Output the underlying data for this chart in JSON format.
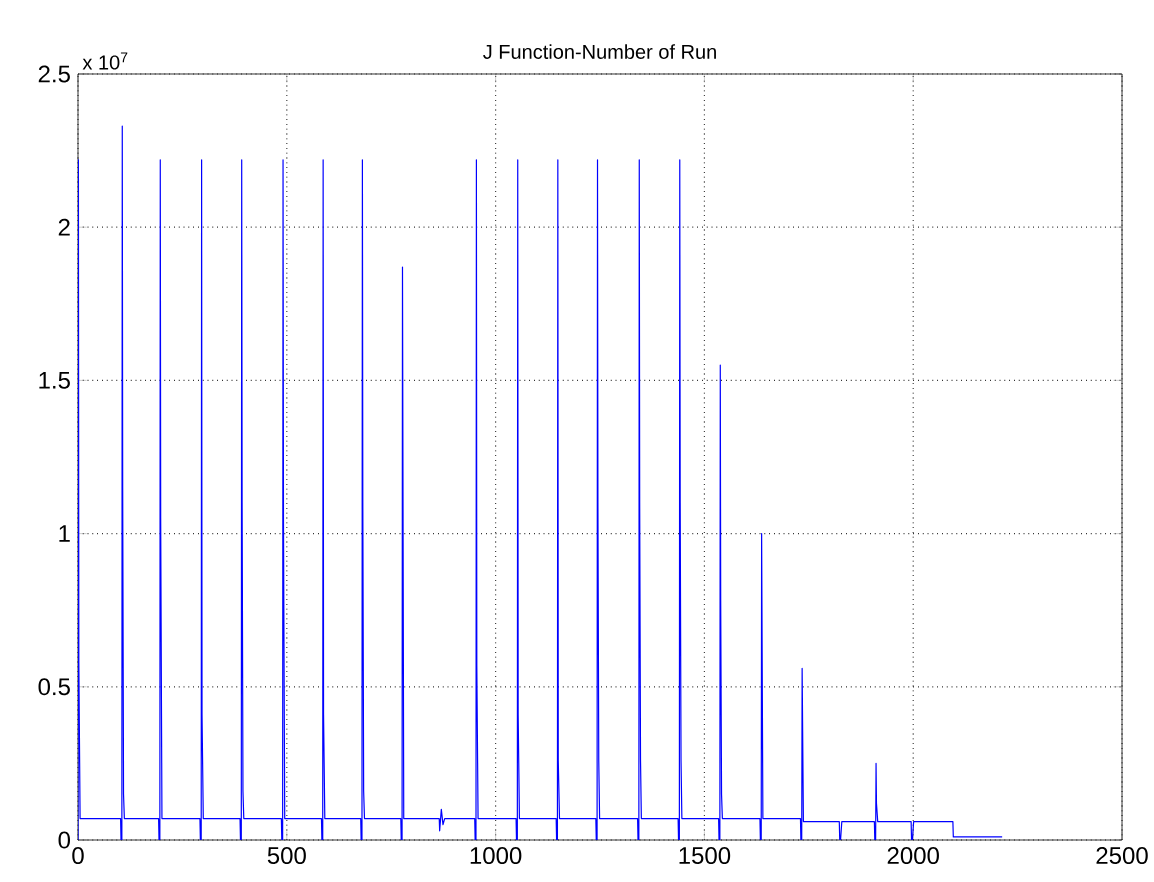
{
  "chart_data": {
    "type": "line",
    "title": "J Function-Number of Run",
    "annotations": [
      "x 10$^{7}$"
    ],
    "xlim": [
      0,
      2500
    ],
    "xticks": [
      0,
      500,
      1000,
      1500,
      2000,
      2500
    ],
    "ylim": [
      0,
      2.5
    ],
    "yticks": [
      0,
      0.5,
      1,
      1.5,
      2,
      2.5
    ],
    "grid": true,
    "marker": "none",
    "line_style": "solid",
    "series": [
      {
        "color": "#0000ff",
        "x": [
          0,
          1,
          2,
          5,
          102,
          103,
          105,
          106,
          107,
          109,
          111,
          193,
          194,
          196,
          197,
          198,
          201,
          292,
          293,
          295,
          296,
          297,
          300,
          388,
          389,
          391,
          392,
          393,
          395,
          397,
          487,
          488,
          490,
          491,
          492,
          495,
          583,
          584,
          586,
          587,
          588,
          591,
          677,
          678,
          680,
          681,
          682,
          684,
          686,
          773,
          774,
          776,
          777,
          780,
          865,
          866,
          870,
          874,
          878,
          950,
          951,
          953,
          954,
          955,
          958,
          1049,
          1050,
          1052,
          1053,
          1054,
          1057,
          1145,
          1146,
          1148,
          1149,
          1150,
          1153,
          1240,
          1241,
          1243,
          1244,
          1245,
          1247,
          1249,
          1340,
          1341,
          1343,
          1344,
          1345,
          1347,
          1349,
          1437,
          1438,
          1440,
          1441,
          1442,
          1444,
          1446,
          1534,
          1535,
          1537,
          1538,
          1539,
          1541,
          1543,
          1633,
          1634,
          1636,
          1637,
          1640,
          1730,
          1731,
          1733,
          1734,
          1737,
          1823,
          1824,
          1826,
          1829,
          1907,
          1908,
          1910,
          1911,
          1912,
          1915,
          1995,
          1996,
          1998,
          2001,
          2095,
          2096,
          2213
        ],
        "values": [
          0,
          2.22,
          0.58,
          0.07,
          0.07,
          0,
          0,
          2.33,
          1.15,
          0.15,
          0.07,
          0.07,
          0,
          0,
          2.22,
          1.05,
          0.07,
          0.07,
          0,
          0,
          2.22,
          0.41,
          0.07,
          0.07,
          0,
          0,
          2.22,
          1.1,
          0.16,
          0.07,
          0.07,
          0,
          0,
          2.22,
          1.05,
          0.07,
          0.07,
          0,
          0,
          2.22,
          0.41,
          0.07,
          0.07,
          0,
          0,
          2.22,
          1.1,
          0.16,
          0.07,
          0.07,
          0,
          0,
          1.87,
          0.07,
          0.07,
          0.03,
          0.1,
          0.05,
          0.07,
          0.07,
          0,
          0,
          2.22,
          0.57,
          0.07,
          0.07,
          0,
          0,
          2.22,
          0.41,
          0.07,
          0.07,
          0,
          0,
          2.22,
          0.26,
          0.07,
          0.07,
          0,
          0,
          2.22,
          1.1,
          0.26,
          0.07,
          0.07,
          0,
          0,
          2.22,
          1.1,
          0.26,
          0.07,
          0.07,
          0,
          0,
          2.22,
          1.1,
          0.26,
          0.07,
          0.07,
          0,
          0,
          1.55,
          0.78,
          0.15,
          0.07,
          0.07,
          0,
          0,
          1,
          0.07,
          0.07,
          0,
          0,
          0.56,
          0.06,
          0.06,
          0,
          0,
          0.06,
          0.06,
          0,
          0,
          0.25,
          0.12,
          0.06,
          0.06,
          0,
          0,
          0.06,
          0.06,
          0.01,
          0.01
        ]
      }
    ]
  }
}
